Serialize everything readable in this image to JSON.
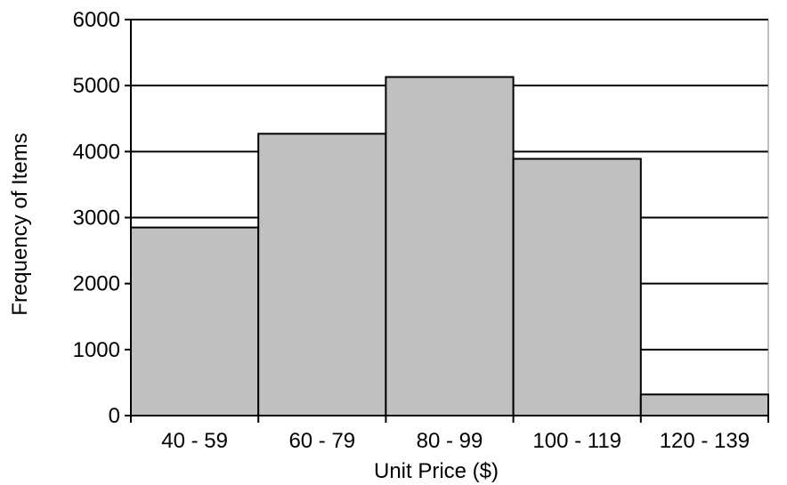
{
  "chart_data": {
    "type": "bar",
    "categories": [
      "40 - 59",
      "60 - 79",
      "80 - 99",
      "100 - 119",
      "120 - 139"
    ],
    "values": [
      2850,
      4270,
      5130,
      3890,
      320
    ],
    "xlabel": "Unit Price ($)",
    "ylabel": "Frequency of Items",
    "ylim": [
      0,
      6000
    ],
    "yticks": [
      "0",
      "1000",
      "2000",
      "3000",
      "4000",
      "5000",
      "6000"
    ],
    "grid": true,
    "bar_color": "#c0c0c0",
    "edge_color": "#000000",
    "gridline_color": "#000000"
  }
}
